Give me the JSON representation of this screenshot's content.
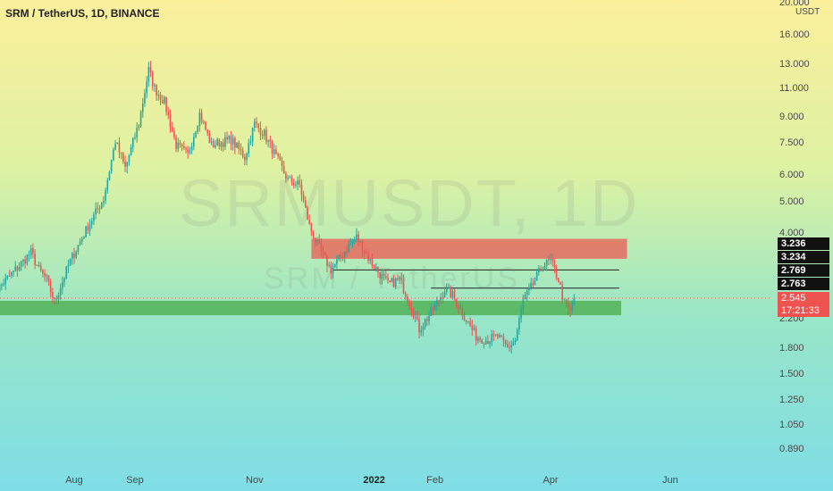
{
  "header": {
    "legend": "SRM / TetherUS, 1D, BINANCE"
  },
  "watermark": {
    "main": "SRMUSDT, 1D",
    "sub": "SRM / TetherUS"
  },
  "colors": {
    "up": "#26a69a",
    "down": "#ef5350",
    "resistance_zone": "#ef5350",
    "support_zone": "#4caf50",
    "price_line": "#ef5350"
  },
  "chart_data": {
    "type": "candlestick",
    "scale": "log",
    "unit": "USDT",
    "y_ticks": [
      "20.000",
      "16.000",
      "13.000",
      "11.000",
      "9.000",
      "7.500",
      "6.000",
      "5.000",
      "4.000",
      "2.200",
      "1.800",
      "1.500",
      "1.250",
      "1.050",
      "0.890"
    ],
    "x_ticks": [
      {
        "label": "Aug",
        "date": "2021-08-01"
      },
      {
        "label": "Sep",
        "date": "2021-09-01"
      },
      {
        "label": "Nov",
        "date": "2021-11-01"
      },
      {
        "label": "2022",
        "date": "2022-01-01",
        "bold": true
      },
      {
        "label": "Feb",
        "date": "2022-02-01"
      },
      {
        "label": "Apr",
        "date": "2022-04-01"
      },
      {
        "label": "Jun",
        "date": "2022-06-01"
      }
    ],
    "price_labels": [
      {
        "value": "3.236"
      },
      {
        "value": "3.234"
      },
      {
        "value": "2.769"
      },
      {
        "value": "2.763"
      }
    ],
    "last_price": {
      "value": "2.545",
      "countdown": "17:21:33"
    },
    "zones": [
      {
        "name": "resistance",
        "from_date": "2021-11-30",
        "to_date": "2022-05-10",
        "low": 3.35,
        "high": 3.85
      },
      {
        "name": "support",
        "from_date": "2021-06-20",
        "to_date": "2022-05-07",
        "low": 2.26,
        "high": 2.5
      }
    ],
    "levels": [
      {
        "price": 3.1,
        "from_date": "2021-12-11",
        "to_date": "2022-05-06"
      },
      {
        "price": 2.73,
        "from_date": "2022-01-30",
        "to_date": "2022-05-06"
      }
    ],
    "price_path": [
      [
        "2021-06-20",
        2.6
      ],
      [
        "2021-07-02",
        3.1
      ],
      [
        "2021-07-10",
        3.5
      ],
      [
        "2021-07-14",
        3.1
      ],
      [
        "2021-07-18",
        2.9
      ],
      [
        "2021-07-22",
        2.48
      ],
      [
        "2021-07-30",
        3.3
      ],
      [
        "2021-08-08",
        4.2
      ],
      [
        "2021-08-16",
        5.1
      ],
      [
        "2021-08-22",
        7.6
      ],
      [
        "2021-08-27",
        6.3
      ],
      [
        "2021-09-03",
        8.6
      ],
      [
        "2021-09-08",
        12.5
      ],
      [
        "2021-09-11",
        11.0
      ],
      [
        "2021-09-16",
        10.0
      ],
      [
        "2021-09-22",
        7.4
      ],
      [
        "2021-09-28",
        6.9
      ],
      [
        "2021-10-04",
        9.2
      ],
      [
        "2021-10-10",
        7.4
      ],
      [
        "2021-10-20",
        7.7
      ],
      [
        "2021-10-27",
        6.8
      ],
      [
        "2021-11-01",
        8.6
      ],
      [
        "2021-11-06",
        8.0
      ],
      [
        "2021-11-12",
        6.8
      ],
      [
        "2021-11-18",
        5.8
      ],
      [
        "2021-11-24",
        5.6
      ],
      [
        "2021-11-29",
        4.2
      ],
      [
        "2021-12-04",
        3.6
      ],
      [
        "2021-12-10",
        3.1
      ],
      [
        "2021-12-18",
        3.6
      ],
      [
        "2021-12-23",
        3.9
      ],
      [
        "2021-12-30",
        3.3
      ],
      [
        "2022-01-08",
        2.8
      ],
      [
        "2022-01-14",
        2.9
      ],
      [
        "2022-01-20",
        2.4
      ],
      [
        "2022-01-24",
        2.05
      ],
      [
        "2022-01-30",
        2.3
      ],
      [
        "2022-02-06",
        2.7
      ],
      [
        "2022-02-10",
        2.6
      ],
      [
        "2022-02-15",
        2.3
      ],
      [
        "2022-02-22",
        1.95
      ],
      [
        "2022-02-27",
        1.9
      ],
      [
        "2022-03-05",
        1.95
      ],
      [
        "2022-03-10",
        1.8
      ],
      [
        "2022-03-14",
        1.9
      ],
      [
        "2022-03-18",
        2.5
      ],
      [
        "2022-03-23",
        2.8
      ],
      [
        "2022-03-28",
        3.2
      ],
      [
        "2022-04-01",
        3.3
      ],
      [
        "2022-04-05",
        2.9
      ],
      [
        "2022-04-08",
        2.45
      ],
      [
        "2022-04-11",
        2.3
      ],
      [
        "2022-04-13",
        2.55
      ]
    ]
  }
}
